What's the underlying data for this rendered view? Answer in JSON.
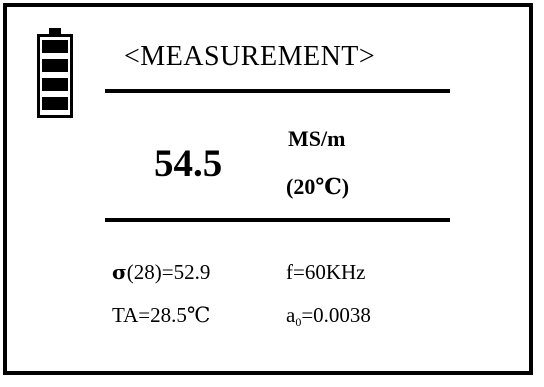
{
  "battery": {
    "icon": "battery-full-icon",
    "level": 1.0
  },
  "title": "<MEASUREMENT>",
  "reading": {
    "value": "54.5",
    "unit": "MS/m",
    "temperature": "(20℃)"
  },
  "details": {
    "sigma_symbol": "σ",
    "sigma_label": "(28)=52.9",
    "frequency": "f=60KHz",
    "ambient_temp": "TA=28.5℃",
    "coeff_prefix": "a",
    "coeff_sub": "0",
    "coeff_value": "=0.0038"
  }
}
